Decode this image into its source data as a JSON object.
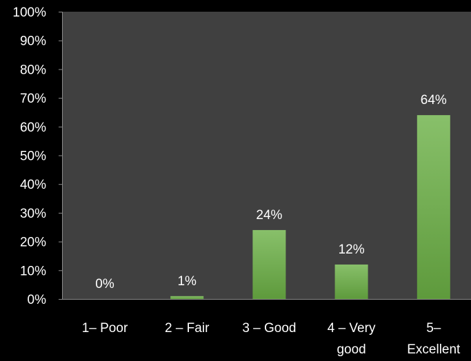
{
  "chart_data": {
    "type": "bar",
    "categories": [
      [
        "1– Poor"
      ],
      [
        "2 – Fair"
      ],
      [
        "3 – Good"
      ],
      [
        "4 – Very",
        "good"
      ],
      [
        "5–",
        "Excellent"
      ]
    ],
    "values": [
      0,
      1,
      24,
      12,
      64
    ],
    "data_labels": [
      "0%",
      "1%",
      "24%",
      "12%",
      "64%"
    ],
    "ylim": [
      0,
      100
    ],
    "y_ticks": [
      0,
      10,
      20,
      30,
      40,
      50,
      60,
      70,
      80,
      90,
      100
    ],
    "y_tick_labels": [
      "0%",
      "10%",
      "20%",
      "30%",
      "40%",
      "50%",
      "60%",
      "70%",
      "80%",
      "90%",
      "100%"
    ],
    "title": "",
    "xlabel": "",
    "ylabel": "",
    "grid": false,
    "legend": "none",
    "colors": {
      "background": "#000000",
      "plot_area": "#404040",
      "bar_top": "#88c06a",
      "bar_bottom": "#5e9a3c",
      "axis": "#8c8c8c",
      "text": "#ffffff"
    }
  }
}
